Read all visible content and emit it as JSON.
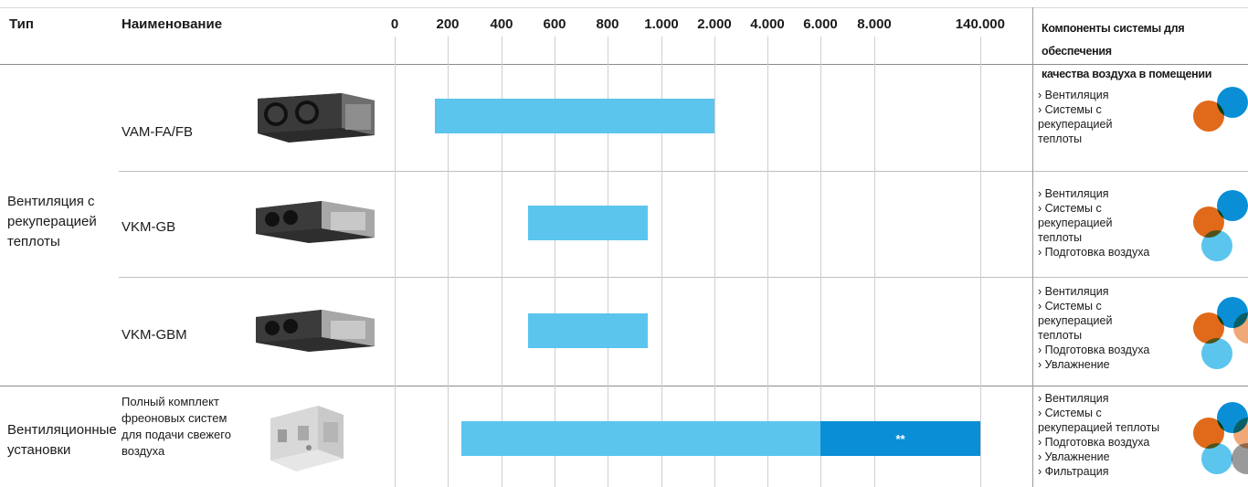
{
  "header": {
    "type": "Тип",
    "name": "Наименование",
    "components_line1": "Компоненты системы для обеспечения",
    "components_line2": "качества воздуха в помещении"
  },
  "chart_data": {
    "type": "bar",
    "x_ticks": [
      "0",
      "200",
      "400",
      "600",
      "800",
      "1.000",
      "2.000",
      "4.000",
      "6.000",
      "8.000",
      "140.000"
    ],
    "rows": [
      {
        "type": "",
        "name": "VAM-FA/FB",
        "range": [
          "150",
          "2.000"
        ],
        "range_extended": null,
        "extended_label": "",
        "components": [
          "› Вентиляция",
          "› Системы с",
          "рекуперацией",
          "теплоты"
        ]
      },
      {
        "type": "Вентиляция с рекуперацией теплоты",
        "name": "VKM-GB",
        "range": [
          "500",
          "950"
        ],
        "range_extended": null,
        "extended_label": "",
        "components": [
          "› Вентиляция",
          "› Системы с",
          "рекуперацией",
          "теплоты",
          "› Подготовка воздуха"
        ]
      },
      {
        "type": "",
        "name": "VKM-GBM",
        "range": [
          "500",
          "950"
        ],
        "range_extended": null,
        "extended_label": "",
        "components": [
          "› Вентиляция",
          "› Системы с",
          "рекуперацией",
          "теплоты",
          "› Подготовка воздуха",
          "› Увлажнение"
        ]
      },
      {
        "type": "Вентиляционные установки",
        "name": "Полный комплект фреоновых систем для подачи свежего воздуха",
        "range": [
          "250",
          "6.000"
        ],
        "range_extended": [
          "6.000",
          "140.000"
        ],
        "extended_label": "**",
        "components": [
          "› Вентиляция",
          "› Системы с",
          "рекуперацией теплоты",
          "› Подготовка воздуха",
          "› Увлажнение",
          "› Фильтрация"
        ]
      }
    ]
  },
  "colors": {
    "bar_light": "#5bc5ee",
    "bar_dark": "#0a8fd6",
    "orange": "#e06a1a",
    "orange_light": "#f1a878",
    "blue": "#0a8fd6",
    "blue_light": "#5bc5ee",
    "grey": "#9a9a9a",
    "grid": "#cfcfcf"
  }
}
